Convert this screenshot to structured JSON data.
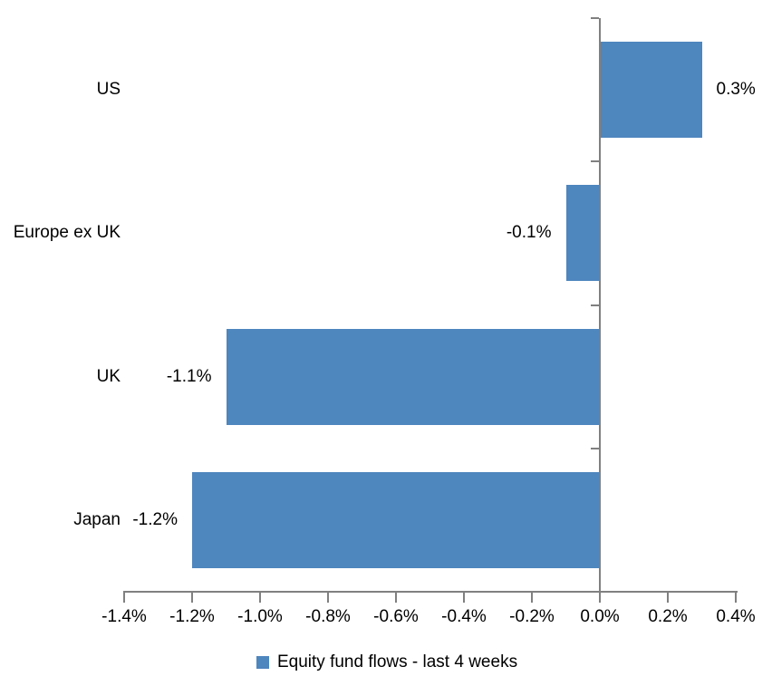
{
  "chart_data": {
    "type": "bar",
    "orientation": "horizontal",
    "title": "",
    "categories": [
      "US",
      "Europe ex UK",
      "UK",
      "Japan"
    ],
    "values": [
      0.3,
      -0.1,
      -1.1,
      -1.2
    ],
    "value_labels": [
      "0.3%",
      "-0.1%",
      "-1.1%",
      "-1.2%"
    ],
    "series_name": "Equity fund flows - last 4 weeks",
    "xlim": [
      -1.4,
      0.4
    ],
    "x_tick_step": 0.2,
    "x_tick_labels": [
      "-1.4%",
      "-1.2%",
      "-1.0%",
      "-0.8%",
      "-0.6%",
      "-0.4%",
      "-0.2%",
      "0.0%",
      "0.2%",
      "0.4%"
    ],
    "grid": false,
    "legend_position": "bottom",
    "bar_color": "#4E86BE",
    "axis_color": "#808080",
    "text_color": "#000000",
    "background_color": "#FFFFFF"
  }
}
